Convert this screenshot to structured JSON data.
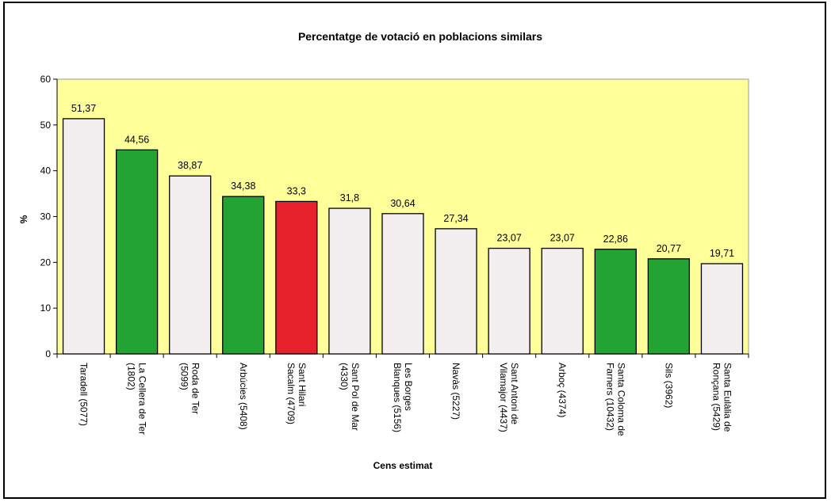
{
  "chart_data": {
    "type": "bar",
    "title": "Percentatge de votació en poblacions similars",
    "xlabel": "Cens estimat",
    "ylabel": "%",
    "ylim": [
      0,
      60
    ],
    "yticks": [
      0,
      10,
      20,
      30,
      40,
      50,
      60
    ],
    "grid": false,
    "legend": "none",
    "plot_background": "#ffff99",
    "categories": [
      [
        "Taradell (5077)"
      ],
      [
        "La Cellera de Ter",
        "(1802)"
      ],
      [
        "Roda de Ter",
        "(5099)"
      ],
      [
        "Arbúcies (5408)"
      ],
      [
        "Sant Hilari",
        "Sacalm (4709)"
      ],
      [
        "Sant Pol de Mar",
        "(4330)"
      ],
      [
        "Les Borges",
        "Blanques (5156)"
      ],
      [
        "Navàs (5227)"
      ],
      [
        "Sant Antoni de",
        "Vilamajor (4437)"
      ],
      [
        "Arboç (4374)"
      ],
      [
        "Santa Coloma de",
        "Farners (10432)"
      ],
      [
        "Sils (3962)"
      ],
      [
        "Santa Eulàlia de",
        "Ronçana (5429)"
      ]
    ],
    "values": [
      51.37,
      44.56,
      38.87,
      34.38,
      33.3,
      31.8,
      30.64,
      27.34,
      23.07,
      23.07,
      22.86,
      20.77,
      19.71
    ],
    "value_labels": [
      "51,37",
      "44,56",
      "38,87",
      "34,38",
      "33,3",
      "31,8",
      "30,64",
      "27,34",
      "23,07",
      "23,07",
      "22,86",
      "20,77",
      "19,71"
    ],
    "bar_colors": [
      "#f3eff0",
      "#22a332",
      "#f3eff0",
      "#22a332",
      "#e8222d",
      "#f3eff0",
      "#f3eff0",
      "#f3eff0",
      "#f3eff0",
      "#f3eff0",
      "#22a332",
      "#22a332",
      "#f3eff0"
    ]
  }
}
